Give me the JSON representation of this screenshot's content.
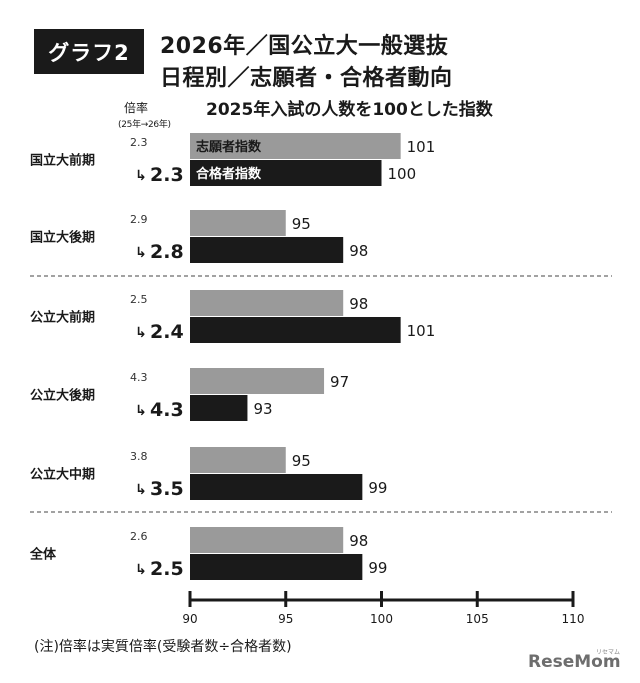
{
  "header": {
    "badge": "グラフ2",
    "title_line1": "2026年／国公立大一般選抜",
    "title_line2": "日程別／志願者・合格者動向",
    "subtitle": "2025年入試の人数を100とした指数",
    "ratio_label": "倍率",
    "ratio_sub": "(25年→26年)"
  },
  "note": "(注)倍率は実質倍率(受験者数÷合格者数)",
  "logo": {
    "text": "ReseMom",
    "kana": "リセマム"
  },
  "colors": {
    "applicants": "#9a9a9a",
    "passers": "#1a1a1a"
  },
  "chart_data": {
    "type": "bar",
    "orientation": "horizontal",
    "title": "2025年入試の人数を100とした指数",
    "categories": [
      "国立大前期",
      "国立大後期",
      "公立大前期",
      "公立大後期",
      "公立大中期",
      "全体"
    ],
    "series": [
      {
        "name": "志願者指数",
        "values": [
          101,
          95,
          98,
          97,
          95,
          98
        ]
      },
      {
        "name": "合格者指数",
        "values": [
          100,
          98,
          101,
          93,
          99,
          99
        ]
      }
    ],
    "ratio": {
      "prev": [
        "2.3",
        "2.9",
        "2.5",
        "4.3",
        "3.8",
        "2.6"
      ],
      "curr": [
        "2.3",
        "2.8",
        "2.4",
        "4.3",
        "3.5",
        "2.5"
      ]
    },
    "xlim": [
      90,
      110
    ],
    "xticks": [
      90,
      95,
      100,
      105,
      110
    ],
    "legend": "inside-first-bars",
    "group_separators_after": [
      1,
      4
    ]
  }
}
